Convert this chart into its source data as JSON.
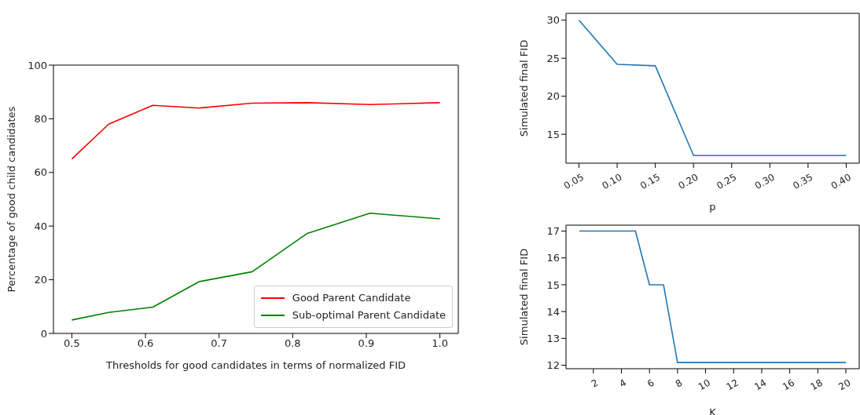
{
  "chart_data": [
    {
      "type": "line",
      "xlabel": "Thresholds for good candidates in terms of normalized FID",
      "ylabel": "Percentage of good child candidates",
      "x": [
        0.5,
        0.55,
        0.61,
        0.673,
        0.745,
        0.82,
        0.905,
        1.0
      ],
      "series": [
        {
          "name": "Good Parent Candidate",
          "color": "#ff0000",
          "values": [
            65,
            78,
            85,
            84,
            85.8,
            86,
            85.3,
            86
          ]
        },
        {
          "name": "Sub-optimal Parent Candidate",
          "color": "#008000",
          "values": [
            5,
            7.8,
            9.8,
            19.3,
            23,
            37.3,
            44.8,
            42.7
          ]
        }
      ],
      "xlim": [
        0.475,
        1.025
      ],
      "xticks": [
        0.5,
        0.6,
        0.7,
        0.8,
        0.9,
        {
          "value": 1.0,
          "label": "1.0"
        }
      ],
      "ylim": [
        0,
        100
      ],
      "yticks": [
        0,
        20,
        40,
        60,
        80,
        100
      ],
      "legend": "bottom right"
    },
    {
      "type": "line",
      "xlabel": "p",
      "ylabel": "Simulated final FID",
      "x": [
        0.05,
        0.1,
        0.15,
        0.2,
        0.25,
        0.3,
        0.35,
        0.4
      ],
      "series": [
        {
          "color": "#1f77b4",
          "values": [
            30,
            24.2,
            24,
            12.2,
            12.2,
            12.2,
            12.2,
            12.2
          ]
        }
      ],
      "xlim": [
        0.033,
        0.417
      ],
      "xticks": [
        0.05,
        {
          "value": 0.1,
          "label": "0.10"
        },
        0.15,
        {
          "value": 0.2,
          "label": "0.20"
        },
        0.25,
        {
          "value": 0.3,
          "label": "0.30"
        },
        0.35,
        {
          "value": 0.4,
          "label": "0.40"
        }
      ],
      "ylim": [
        11.2,
        30.9
      ],
      "yticks": [
        15,
        20,
        25,
        30
      ]
    },
    {
      "type": "line",
      "xlabel": "K",
      "ylabel": "Simulated final FID",
      "x": [
        1,
        2,
        3,
        4,
        5,
        6,
        7,
        8,
        9,
        10,
        11,
        12,
        13,
        14,
        15,
        16,
        17,
        18,
        19,
        20
      ],
      "series": [
        {
          "color": "#1f77b4",
          "values": [
            17,
            17,
            17,
            17,
            17,
            15,
            15,
            12.1,
            12.1,
            12.1,
            12.1,
            12.1,
            12.1,
            12.1,
            12.1,
            12.1,
            12.1,
            12.1,
            12.1,
            12.1
          ]
        }
      ],
      "xlim": [
        0.05,
        20.95
      ],
      "xticks": [
        2,
        4,
        6,
        8,
        10,
        12,
        14,
        16,
        18,
        20
      ],
      "ylim": [
        11.87,
        17.22
      ],
      "yticks": [
        12,
        13,
        14,
        15,
        16,
        17
      ]
    }
  ]
}
